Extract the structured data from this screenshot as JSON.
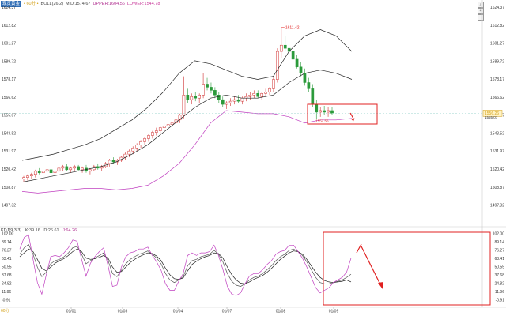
{
  "legend": {
    "symbol": "现货黄金",
    "period": "• 60分 •",
    "indicator": "BOLL(26,2)",
    "mid": "MID:1574.67",
    "upper": "UPPER:1604.56",
    "lower": "LOWER:1544.78"
  },
  "kdj_legend": {
    "name": "KDJ(9,3,3)",
    "k": "K:39.16",
    "d": "D:26.61",
    "j": "J:64.26"
  },
  "colors": {
    "up": "#d03030",
    "down": "#2a9a3a",
    "band_line": "#222222",
    "lower_band": "#c040c0",
    "annotation": "#e02020",
    "current_price": "#d4a017"
  },
  "main_price_labels": [
    "1624.37",
    "1612.82",
    "1601.27",
    "1589.72",
    "1578.17",
    "1566.62",
    "1555.07",
    "1543.52",
    "1531.97",
    "1520.42",
    "1508.87",
    "1497.32"
  ],
  "kdj_labels": [
    "102.00",
    "89.14",
    "76.27",
    "63.41",
    "50.55",
    "37.68",
    "24.82",
    "11.96",
    "-0.91"
  ],
  "x_labels": [
    "01/01",
    "01/03",
    "01/04",
    "01/07",
    "01/08",
    "01/09"
  ],
  "corner_label": "60分",
  "high_annotation": "1611.42",
  "low_annotation": "1552.56",
  "current_price_label": "1556.26",
  "current_price_label_2": "1555.07",
  "icons": [
    "search-icon",
    "zoom-in-icon",
    "zoom-out-icon"
  ],
  "chart_data": [
    {
      "type": "candlestick",
      "title": "",
      "indicator": "BOLL(26,2)",
      "x_ticks": [
        "01/01",
        "01/03",
        "01/04",
        "01/07",
        "01/08",
        "01/09"
      ],
      "y_ticks": [
        1624.37,
        1612.82,
        1601.27,
        1589.72,
        1578.17,
        1566.62,
        1555.07,
        1543.52,
        1531.97,
        1520.42,
        1508.87,
        1497.32
      ],
      "ylim": [
        1492,
        1627
      ],
      "bars": [
        [
          1514,
          1516,
          1512,
          1515
        ],
        [
          1515,
          1517,
          1513,
          1516
        ],
        [
          1516,
          1518,
          1514,
          1517
        ],
        [
          1517,
          1520,
          1515,
          1519
        ],
        [
          1519,
          1521,
          1517,
          1518
        ],
        [
          1518,
          1520,
          1516,
          1519
        ],
        [
          1519,
          1521,
          1518,
          1520
        ],
        [
          1520,
          1522,
          1517,
          1518
        ],
        [
          1518,
          1520,
          1516,
          1519
        ],
        [
          1519,
          1521,
          1517,
          1521
        ],
        [
          1521,
          1523,
          1519,
          1522
        ],
        [
          1522,
          1524,
          1519,
          1520
        ],
        [
          1520,
          1522,
          1518,
          1521
        ],
        [
          1521,
          1523,
          1519,
          1522
        ],
        [
          1522,
          1523,
          1519,
          1520
        ],
        [
          1520,
          1522,
          1518,
          1521
        ],
        [
          1521,
          1523,
          1518,
          1519
        ],
        [
          1519,
          1521,
          1517,
          1520
        ],
        [
          1520,
          1523,
          1519,
          1522
        ],
        [
          1522,
          1524,
          1520,
          1521
        ],
        [
          1521,
          1523,
          1519,
          1522
        ],
        [
          1522,
          1525,
          1521,
          1524
        ],
        [
          1524,
          1527,
          1522,
          1526
        ],
        [
          1526,
          1528,
          1524,
          1525
        ],
        [
          1525,
          1527,
          1523,
          1526
        ],
        [
          1526,
          1529,
          1525,
          1528
        ],
        [
          1528,
          1531,
          1526,
          1530
        ],
        [
          1530,
          1533,
          1528,
          1532
        ],
        [
          1532,
          1535,
          1530,
          1534
        ],
        [
          1534,
          1537,
          1532,
          1536
        ],
        [
          1536,
          1539,
          1534,
          1538
        ],
        [
          1538,
          1541,
          1536,
          1540
        ],
        [
          1540,
          1543,
          1538,
          1542
        ],
        [
          1542,
          1545,
          1540,
          1544
        ],
        [
          1544,
          1547,
          1542,
          1545
        ],
        [
          1545,
          1548,
          1543,
          1547
        ],
        [
          1547,
          1550,
          1545,
          1548
        ],
        [
          1548,
          1550,
          1546,
          1549
        ],
        [
          1549,
          1552,
          1547,
          1550
        ],
        [
          1550,
          1553,
          1548,
          1552
        ],
        [
          1552,
          1556,
          1550,
          1555
        ],
        [
          1555,
          1580,
          1553,
          1568
        ],
        [
          1568,
          1572,
          1563,
          1565
        ],
        [
          1565,
          1569,
          1562,
          1567
        ],
        [
          1567,
          1570,
          1564,
          1566
        ],
        [
          1566,
          1569,
          1563,
          1568
        ],
        [
          1568,
          1582,
          1566,
          1575
        ],
        [
          1575,
          1579,
          1571,
          1573
        ],
        [
          1573,
          1576,
          1569,
          1571
        ],
        [
          1571,
          1573,
          1566,
          1568
        ],
        [
          1568,
          1570,
          1563,
          1565
        ],
        [
          1565,
          1567,
          1560,
          1562
        ],
        [
          1562,
          1564,
          1559,
          1563
        ],
        [
          1563,
          1566,
          1561,
          1564
        ],
        [
          1564,
          1567,
          1562,
          1565
        ],
        [
          1565,
          1568,
          1563,
          1564
        ],
        [
          1564,
          1567,
          1562,
          1566
        ],
        [
          1566,
          1569,
          1564,
          1567
        ],
        [
          1567,
          1570,
          1565,
          1568
        ],
        [
          1568,
          1571,
          1566,
          1569
        ],
        [
          1569,
          1571,
          1566,
          1567
        ],
        [
          1567,
          1570,
          1565,
          1569
        ],
        [
          1569,
          1572,
          1567,
          1570
        ],
        [
          1570,
          1573,
          1568,
          1572
        ],
        [
          1572,
          1580,
          1570,
          1578
        ],
        [
          1578,
          1598,
          1576,
          1596
        ],
        [
          1596,
          1611.4,
          1592,
          1600
        ],
        [
          1600,
          1606,
          1596,
          1598
        ],
        [
          1598,
          1602,
          1594,
          1596
        ],
        [
          1596,
          1599,
          1590,
          1591
        ],
        [
          1591,
          1594,
          1585,
          1586
        ],
        [
          1586,
          1589,
          1580,
          1582
        ],
        [
          1582,
          1585,
          1574,
          1576
        ],
        [
          1576,
          1579,
          1570,
          1572
        ],
        [
          1572,
          1575,
          1560,
          1562
        ],
        [
          1562,
          1565,
          1552.6,
          1557
        ],
        [
          1557,
          1560,
          1554,
          1558
        ],
        [
          1558,
          1561,
          1555,
          1557
        ],
        [
          1557,
          1560,
          1554,
          1558
        ],
        [
          1558,
          1560,
          1555,
          1556.3
        ]
      ],
      "upper_band": [
        1526,
        1528,
        1530,
        1533,
        1536,
        1540,
        1546,
        1552,
        1560,
        1570,
        1582,
        1590,
        1588,
        1584,
        1580,
        1578,
        1580,
        1596,
        1606,
        1610,
        1606,
        1596
      ],
      "middle_band": [
        1512,
        1514,
        1516,
        1518,
        1520,
        1522,
        1525,
        1530,
        1536,
        1544,
        1552,
        1560,
        1566,
        1568,
        1566,
        1566,
        1568,
        1576,
        1582,
        1584,
        1582,
        1578
      ],
      "lower_band": [
        1506,
        1505,
        1506,
        1507,
        1508,
        1508,
        1507,
        1508,
        1510,
        1516,
        1524,
        1536,
        1550,
        1558,
        1557,
        1556,
        1556,
        1554,
        1550,
        1552,
        1552,
        1553
      ],
      "annotations": [
        "1611.42",
        "1552.56"
      ],
      "current_price": 1556.26
    },
    {
      "type": "line",
      "title": "",
      "indicator": "KDJ(9,3,3)",
      "y_ticks": [
        102.0,
        89.14,
        76.27,
        63.41,
        50.55,
        37.68,
        24.82,
        11.96,
        -0.91
      ],
      "ylim": [
        -5,
        104
      ],
      "series": [
        {
          "name": "K",
          "values": [
            70,
            80,
            85,
            70,
            50,
            35,
            42,
            55,
            60,
            62,
            66,
            72,
            80,
            82,
            70,
            55,
            60,
            64,
            68,
            72,
            60,
            40,
            35,
            45,
            55,
            62,
            66,
            70,
            72,
            75,
            70,
            64,
            55,
            40,
            30,
            26,
            30,
            35,
            52,
            60,
            62,
            66,
            68,
            70,
            76,
            70,
            58,
            40,
            28,
            22,
            20,
            24,
            30,
            34,
            36,
            40,
            46,
            52,
            60,
            66,
            70,
            76,
            78,
            74,
            68,
            58,
            46,
            34,
            26,
            24,
            24,
            26,
            28,
            30,
            34,
            39
          ]
        },
        {
          "name": "D",
          "values": [
            66,
            72,
            78,
            74,
            62,
            48,
            44,
            50,
            56,
            60,
            63,
            68,
            74,
            78,
            74,
            64,
            62,
            63,
            65,
            68,
            64,
            50,
            42,
            43,
            50,
            57,
            62,
            66,
            69,
            72,
            71,
            67,
            60,
            48,
            38,
            32,
            31,
            33,
            44,
            54,
            59,
            63,
            66,
            68,
            72,
            71,
            64,
            50,
            38,
            30,
            25,
            24,
            27,
            31,
            34,
            37,
            42,
            48,
            55,
            62,
            67,
            72,
            75,
            74,
            70,
            62,
            52,
            42,
            34,
            29,
            27,
            26,
            27,
            28,
            30,
            27
          ]
        },
        {
          "name": "J",
          "values": [
            78,
            96,
            100,
            62,
            26,
            8,
            38,
            66,
            68,
            66,
            72,
            80,
            92,
            90,
            62,
            36,
            56,
            66,
            74,
            80,
            52,
            20,
            22,
            50,
            66,
            72,
            74,
            78,
            78,
            81,
            68,
            58,
            45,
            24,
            14,
            14,
            28,
            40,
            68,
            72,
            68,
            72,
            72,
            74,
            84,
            68,
            46,
            20,
            8,
            6,
            10,
            24,
            36,
            40,
            40,
            46,
            54,
            60,
            70,
            74,
            76,
            84,
            84,
            74,
            64,
            50,
            34,
            18,
            10,
            14,
            18,
            26,
            30,
            34,
            42,
            64
          ]
        }
      ]
    }
  ]
}
